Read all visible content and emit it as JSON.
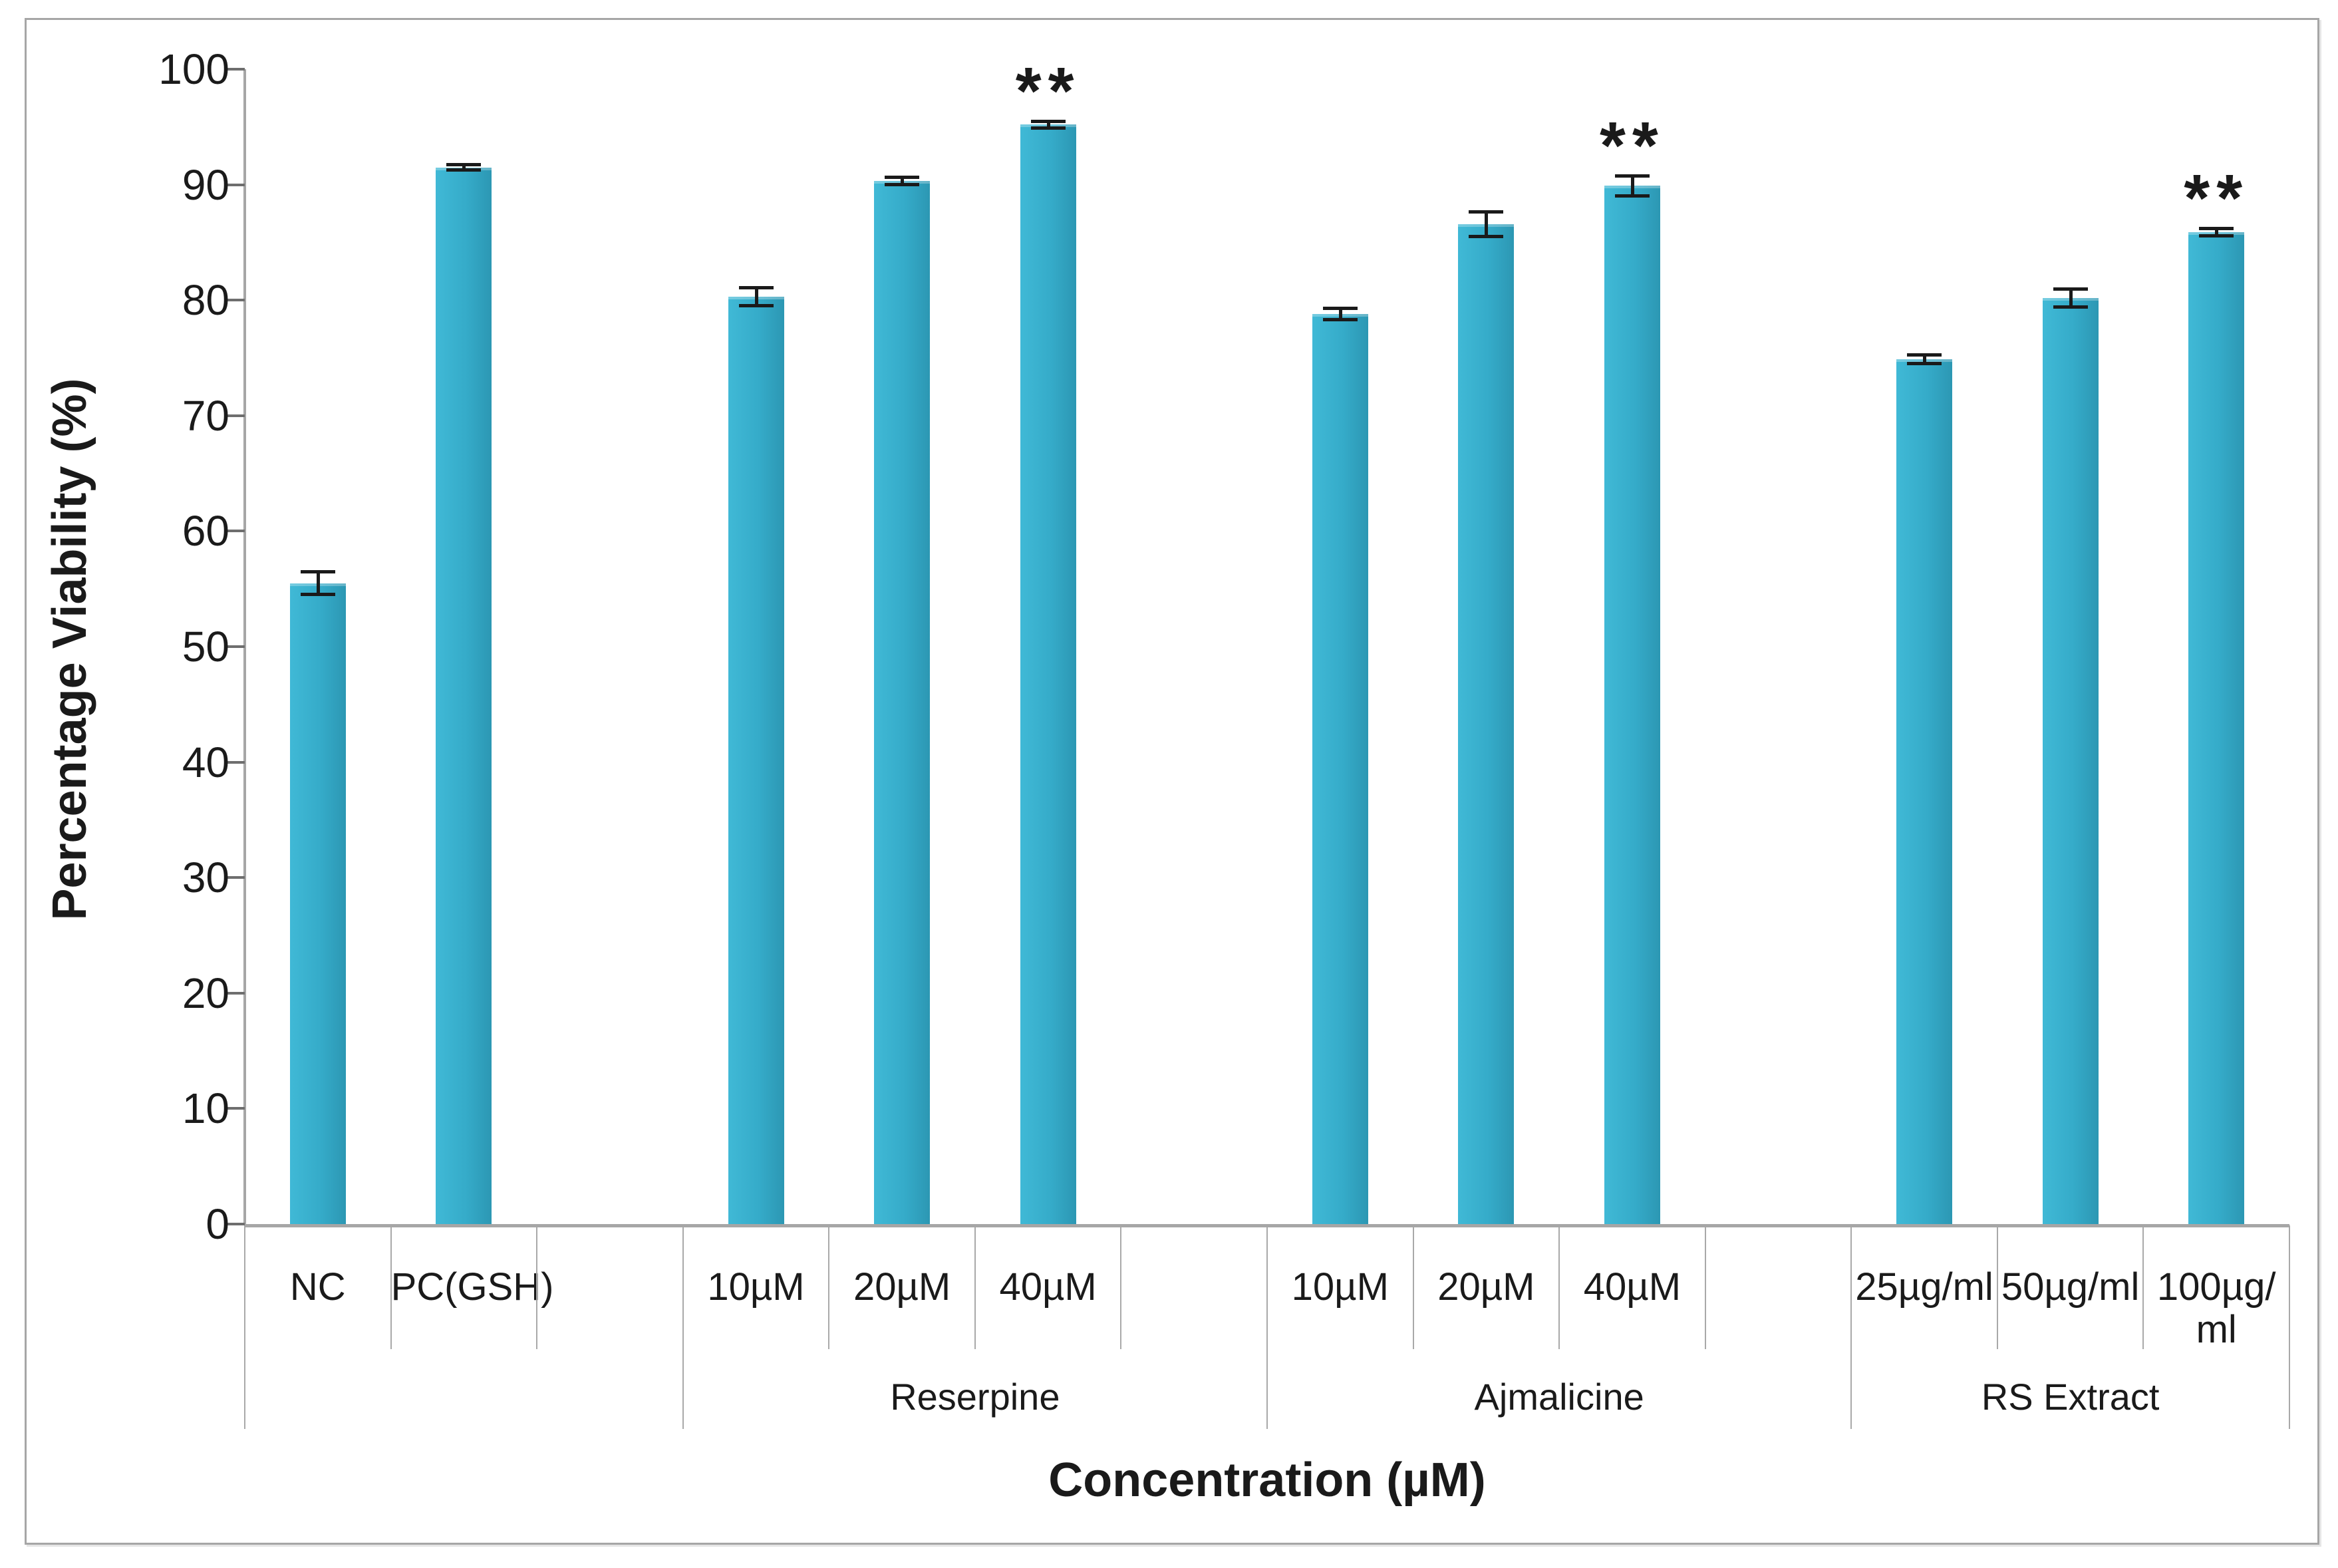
{
  "figure": {
    "kind": "excel-style bar chart",
    "background": "#ffffff",
    "border_color": "#a6a6a6"
  },
  "colors": {
    "bar_fill": "#35abc9",
    "bar_fill_light": "#40b9d6",
    "bar_fill_dark": "#2c97b3",
    "axis_line": "#a6a6a6",
    "tick_mark": "#6e6e6e",
    "separator": "#a9a9a9",
    "error_bar": "#1a1a1a",
    "text": "#1a1a1a"
  },
  "chart_data": {
    "type": "bar",
    "title": "",
    "xlabel": "Concentration (µM)",
    "ylabel": "Percentage Viability (%)",
    "ylim": [
      0,
      100
    ],
    "yticks": [
      0,
      10,
      20,
      30,
      40,
      50,
      60,
      70,
      80,
      90,
      100
    ],
    "grid": false,
    "legend": false,
    "significance_marker": "**",
    "slots": [
      {
        "label_lines": [
          "NC"
        ],
        "value": 55.5,
        "error": 1.0,
        "sig": false
      },
      {
        "label_lines": [
          "PC(GSH)"
        ],
        "value": 91.5,
        "error": 0.25,
        "sig": false
      },
      {
        "label_lines": [],
        "value": null,
        "error": null,
        "sig": false
      },
      {
        "label_lines": [
          "10µM"
        ],
        "value": 80.3,
        "error": 0.8,
        "sig": false
      },
      {
        "label_lines": [
          "20µM"
        ],
        "value": 90.3,
        "error": 0.35,
        "sig": false
      },
      {
        "label_lines": [
          "40µM"
        ],
        "value": 95.2,
        "error": 0.3,
        "sig": true
      },
      {
        "label_lines": [],
        "value": null,
        "error": null,
        "sig": false
      },
      {
        "label_lines": [
          "10µM"
        ],
        "value": 78.8,
        "error": 0.5,
        "sig": false
      },
      {
        "label_lines": [
          "20µM"
        ],
        "value": 86.6,
        "error": 1.1,
        "sig": false
      },
      {
        "label_lines": [
          "40µM"
        ],
        "value": 89.9,
        "error": 0.9,
        "sig": true
      },
      {
        "label_lines": [],
        "value": null,
        "error": null,
        "sig": false
      },
      {
        "label_lines": [
          "25µg/ml"
        ],
        "value": 74.9,
        "error": 0.4,
        "sig": false
      },
      {
        "label_lines": [
          "50µg/ml"
        ],
        "value": 80.2,
        "error": 0.8,
        "sig": false
      },
      {
        "label_lines": [
          "100µg/",
          "ml"
        ],
        "value": 85.9,
        "error": 0.35,
        "sig": true
      }
    ],
    "groups": [
      {
        "label": "",
        "start": 0,
        "end": 3
      },
      {
        "label": "Reserpine",
        "start": 3,
        "end": 7
      },
      {
        "label": "Ajmalicine",
        "start": 7,
        "end": 11
      },
      {
        "label": "RS Extract",
        "start": 11,
        "end": 14
      }
    ]
  }
}
